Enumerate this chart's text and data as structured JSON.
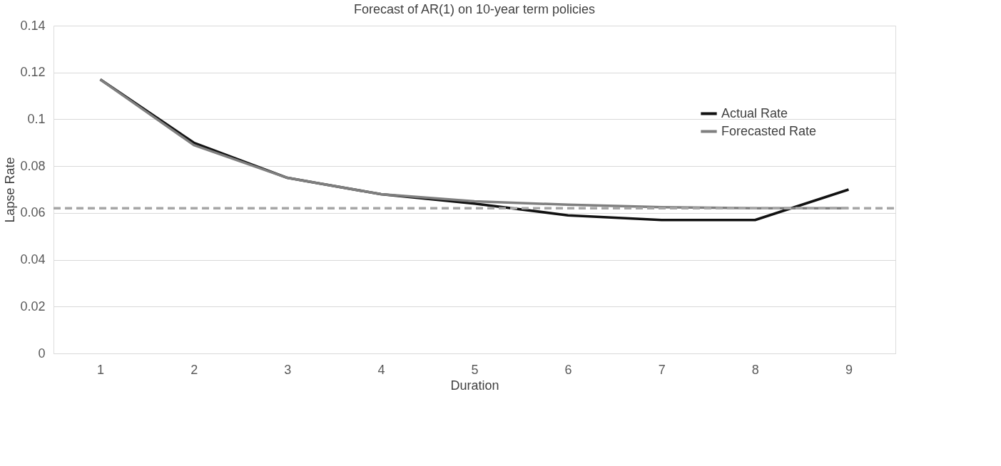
{
  "chart_data": {
    "type": "line",
    "title": "Forecast of AR(1) on 10-year term policies",
    "xlabel": "Duration",
    "ylabel": "Lapse Rate",
    "categories": [
      "1",
      "2",
      "3",
      "4",
      "5",
      "6",
      "7",
      "8",
      "9"
    ],
    "series": [
      {
        "name": "Actual Rate",
        "color": "#111111",
        "values": [
          0.117,
          0.09,
          0.075,
          0.068,
          0.064,
          0.059,
          0.057,
          0.057,
          0.07
        ]
      },
      {
        "name": "Forecasted Rate",
        "color": "#7f7f7f",
        "values": [
          0.117,
          0.089,
          0.075,
          0.068,
          0.065,
          0.0635,
          0.0625,
          0.062,
          0.062
        ]
      }
    ],
    "ylim": [
      0,
      0.14
    ],
    "yticks": [
      0,
      0.02,
      0.04,
      0.06,
      0.08,
      0.1,
      0.12,
      0.14
    ],
    "ref_lines": [
      {
        "axis": "y",
        "value": 0.062,
        "color": "#a6a6a6",
        "line_style": "dashed"
      }
    ],
    "grid": "y",
    "legend": "top right",
    "line_style": "solid",
    "marker": "none"
  }
}
